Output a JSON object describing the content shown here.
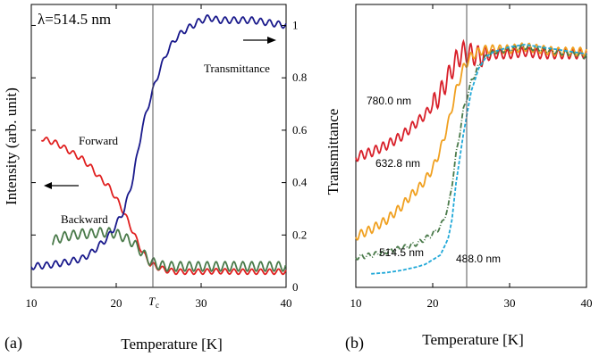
{
  "chart_data": [
    {
      "type": "line",
      "panel_label": "(a)",
      "wavelength_label": "λ=514.5 nm",
      "xlabel": "Temperature [K]",
      "ylabel": "Intensity (arb. unit)",
      "x_ticks": [
        "10",
        "20",
        "30",
        "40"
      ],
      "xlim": [
        10,
        40
      ],
      "right_ticks": [
        "0",
        "0.2",
        "0.4",
        "0.6",
        "0.8",
        "1"
      ],
      "right_ylim": [
        0,
        1.08
      ],
      "tc_x": 24.2,
      "tc_label": "T",
      "tc_sub": "c",
      "annotations": {
        "forward": "Forward",
        "backward": "Backward",
        "transmittance": "Transmittance"
      },
      "series": [
        {
          "name": "Forward",
          "color": "#e02020",
          "axis": "left_norm",
          "x": [
            11.2,
            12,
            13,
            14,
            15,
            16,
            17,
            18,
            19,
            20,
            21,
            22,
            23,
            24,
            25,
            26,
            27,
            28,
            30,
            32,
            34,
            36,
            38,
            40
          ],
          "y": [
            0.57,
            0.56,
            0.55,
            0.53,
            0.51,
            0.49,
            0.46,
            0.42,
            0.39,
            0.34,
            0.28,
            0.21,
            0.14,
            0.09,
            0.075,
            0.065,
            0.06,
            0.06,
            0.06,
            0.062,
            0.06,
            0.06,
            0.06,
            0.06
          ],
          "wiggle": 0.01
        },
        {
          "name": "Backward",
          "color": "#4a7a4a",
          "axis": "left_norm",
          "x": [
            12.5,
            13,
            14,
            15,
            16,
            17,
            18,
            19,
            20,
            21,
            22,
            23,
            24,
            25,
            26,
            27,
            28,
            30,
            32,
            34,
            36,
            38,
            40
          ],
          "y": [
            0.172,
            0.185,
            0.195,
            0.2,
            0.205,
            0.205,
            0.21,
            0.21,
            0.205,
            0.19,
            0.17,
            0.135,
            0.1,
            0.085,
            0.08,
            0.08,
            0.08,
            0.08,
            0.08,
            0.08,
            0.08,
            0.08,
            0.08
          ],
          "wiggle": 0.018
        },
        {
          "name": "Transmittance",
          "color": "#1a1a8c",
          "axis": "right",
          "x": [
            10,
            12,
            14,
            16,
            17,
            18,
            19,
            20,
            21,
            22,
            23,
            24,
            25,
            26,
            27,
            28,
            29,
            30,
            31,
            32,
            34,
            36,
            38,
            40
          ],
          "y": [
            0.08,
            0.085,
            0.095,
            0.11,
            0.13,
            0.16,
            0.19,
            0.24,
            0.3,
            0.42,
            0.6,
            0.72,
            0.82,
            0.9,
            0.95,
            0.98,
            1.0,
            1.02,
            1.03,
            1.02,
            1.02,
            1.02,
            1.01,
            1.0
          ],
          "wiggle": 0.012
        }
      ]
    },
    {
      "type": "line",
      "panel_label": "(b)",
      "xlabel": "Temperature [K]",
      "ylabel": "Transmittance",
      "x_ticks": [
        "10",
        "20",
        "30",
        "40"
      ],
      "xlim": [
        10,
        40
      ],
      "tc_x": 24.2,
      "series": [
        {
          "name": "780.0 nm",
          "color": "#d8202a",
          "x": [
            10,
            12,
            14,
            16,
            17,
            18,
            19,
            20,
            21,
            22,
            23,
            24,
            25,
            26,
            27,
            28,
            30,
            32,
            34,
            36,
            38,
            40
          ],
          "y": [
            0.52,
            0.54,
            0.57,
            0.61,
            0.64,
            0.67,
            0.7,
            0.74,
            0.79,
            0.86,
            0.93,
            0.97,
            0.96,
            0.95,
            0.95,
            0.96,
            0.96,
            0.97,
            0.96,
            0.96,
            0.96,
            0.96
          ],
          "wiggle": 0.02
        },
        {
          "name": "632.8 nm",
          "color": "#f0a020",
          "x": [
            10,
            12,
            14,
            16,
            17,
            18,
            19,
            20,
            21,
            22,
            23,
            24,
            25,
            26,
            27,
            28,
            30,
            32,
            34,
            36,
            38,
            40
          ],
          "y": [
            0.18,
            0.21,
            0.25,
            0.31,
            0.35,
            0.38,
            0.42,
            0.47,
            0.55,
            0.66,
            0.8,
            0.9,
            0.95,
            0.97,
            0.98,
            0.98,
            0.98,
            0.99,
            0.98,
            0.97,
            0.97,
            0.97
          ],
          "wiggle": 0.018
        },
        {
          "name": "514.5 nm",
          "color": "#4a7a4a",
          "x": [
            10,
            12,
            14,
            16,
            18,
            19,
            20,
            21,
            22,
            22.5,
            23,
            24,
            25,
            26,
            27,
            28,
            30,
            32,
            34,
            36,
            38,
            40
          ],
          "y": [
            0.09,
            0.1,
            0.115,
            0.13,
            0.15,
            0.17,
            0.19,
            0.22,
            0.3,
            0.4,
            0.52,
            0.72,
            0.84,
            0.91,
            0.95,
            0.97,
            0.98,
            0.99,
            0.98,
            0.97,
            0.96,
            0.95
          ],
          "wiggle": 0.01
        },
        {
          "name": "488.0 nm",
          "color": "#20a8d8",
          "x": [
            12,
            14,
            16,
            18,
            19,
            20,
            21,
            22,
            22.5,
            23,
            24,
            25,
            26,
            27,
            28,
            30,
            32,
            34,
            36,
            38,
            40
          ],
          "y": [
            0.02,
            0.025,
            0.035,
            0.05,
            0.06,
            0.08,
            0.1,
            0.17,
            0.25,
            0.4,
            0.62,
            0.8,
            0.9,
            0.95,
            0.97,
            0.99,
            1.0,
            0.99,
            0.98,
            0.97,
            0.96
          ],
          "wiggle": 0.0
        }
      ]
    }
  ]
}
